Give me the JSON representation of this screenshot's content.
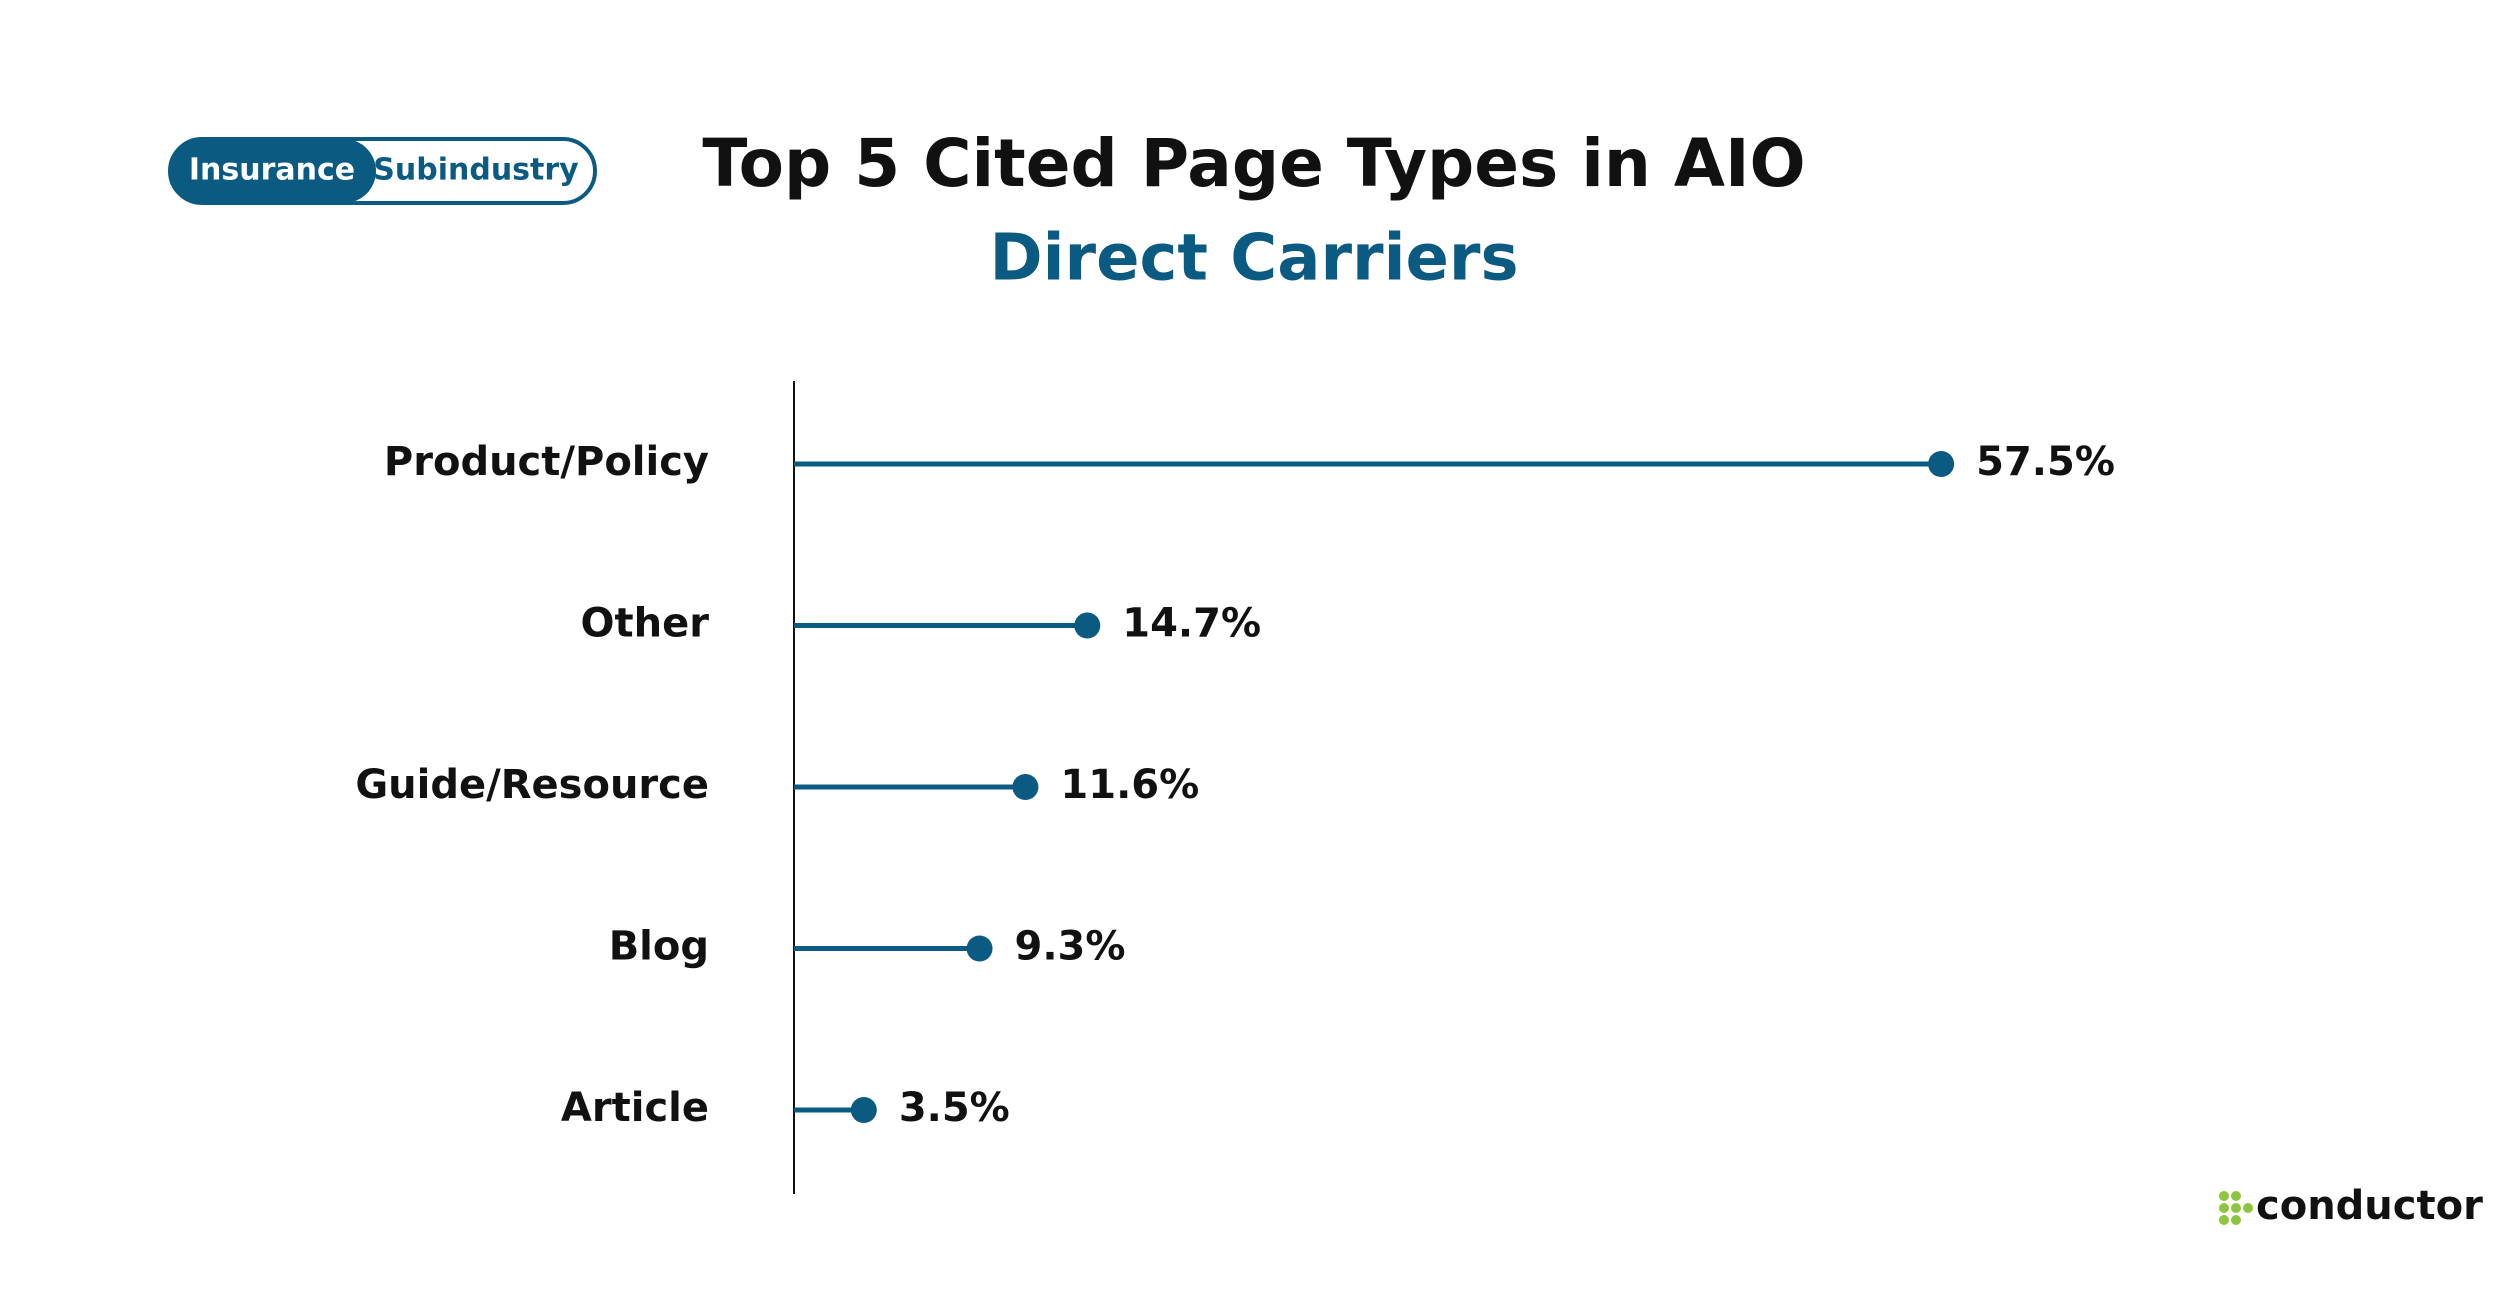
{
  "chart_data": {
    "type": "lollipop",
    "title": "Top 5 Cited Page Types in AIO",
    "subtitle": "Direct Carriers",
    "categories": [
      "Product/Policy",
      "Other",
      "Guide/Resource",
      "Blog",
      "Article"
    ],
    "values": [
      57.5,
      14.7,
      11.6,
      9.3,
      3.5
    ],
    "value_labels": [
      "57.5%",
      "14.7%",
      "11.6%",
      "9.3%",
      "3.5%"
    ],
    "color": "#0b5a82"
  },
  "toggle": {
    "options": [
      "Insurance",
      "Subindustry"
    ]
  },
  "logo": {
    "text": "conductor"
  }
}
